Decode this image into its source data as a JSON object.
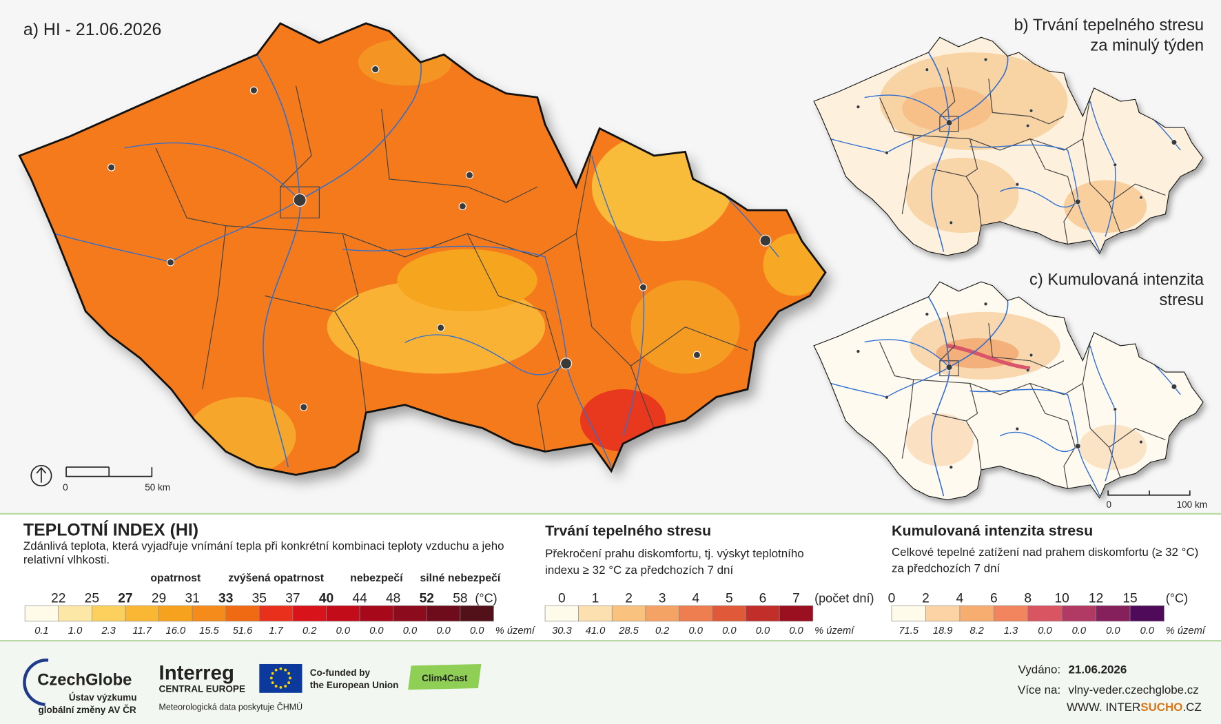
{
  "maps": {
    "a": {
      "title": "a) HI - 21.06.2026",
      "scale_labels": [
        "0",
        "50 km"
      ]
    },
    "b": {
      "title_lines": [
        "b) Trvání tepelného stresu",
        "za minulý týden"
      ]
    },
    "c": {
      "title_lines": [
        "c) Kumulovaná intenzita",
        "stresu"
      ],
      "scale_labels": [
        "0",
        "100 km"
      ]
    }
  },
  "legends": [
    {
      "title": "TEPLOTNÍ INDEX (HI)",
      "description_lines": [
        "Zdánlivá teplota, která vyjadřuje vnímání tepla při konkrétní kombinaci teploty vzduchu a jeho",
        "relativní vlhkosti."
      ],
      "levels": [
        {
          "label": "opatrnost",
          "threshold": 27
        },
        {
          "label": "zvýšená opatrnost",
          "threshold": 33
        },
        {
          "label": "nebezpečí",
          "threshold": 40
        },
        {
          "label": "silné nebezpečí",
          "threshold": 52
        }
      ],
      "ticks": [
        22,
        25,
        27,
        29,
        31,
        33,
        35,
        37,
        40,
        44,
        48,
        52,
        58
      ],
      "unit": "(°C)",
      "colors": [
        "#fffbe8",
        "#fde7a6",
        "#fbd05c",
        "#f9b733",
        "#f7a21e",
        "#f58b1a",
        "#f06a14",
        "#e8301c",
        "#d8141a",
        "#c20c1a",
        "#a8091a",
        "#8c0b1c",
        "#6e0c1c",
        "#521018"
      ],
      "shares": [
        "0.1",
        "1.0",
        "2.3",
        "11.7",
        "16.0",
        "15.5",
        "51.6",
        "1.7",
        "0.2",
        "0.0",
        "0.0",
        "0.0",
        "0.0",
        "0.0"
      ],
      "share_unit": "% území"
    },
    {
      "title": "Trvání tepelného stresu",
      "description_lines": [
        "Překročení prahu diskomfortu, tj. výskyt teplotního",
        "indexu ≥ 32 °C za předchozích 7 dní"
      ],
      "ticks": [
        0,
        1,
        2,
        3,
        4,
        5,
        6,
        7
      ],
      "unit": "(počet dní)",
      "colors": [
        "#fffbea",
        "#fde0b0",
        "#f9c27e",
        "#f5a365",
        "#ee7d50",
        "#e05a3a",
        "#c22f2a",
        "#9a1020"
      ],
      "shares": [
        "30.3",
        "41.0",
        "28.5",
        "0.2",
        "0.0",
        "0.0",
        "0.0",
        "0.0"
      ],
      "share_unit": "% území"
    },
    {
      "title": "Kumulovaná intenzita stresu",
      "description_lines": [
        "Celkové tepelné zatížení nad prahem diskomfortu (≥ 32 °C)",
        "za předchozích 7 dní"
      ],
      "ticks": [
        0,
        2,
        4,
        6,
        8,
        10,
        12,
        15
      ],
      "unit": "(°C)",
      "colors": [
        "#fffbea",
        "#fbd3a4",
        "#f7ad70",
        "#f2845e",
        "#d95562",
        "#b03a64",
        "#85205c",
        "#500a5a"
      ],
      "shares": [
        "71.5",
        "18.9",
        "8.2",
        "1.3",
        "0.0",
        "0.0",
        "0.0",
        "0.0"
      ],
      "share_unit": "% území"
    }
  ],
  "footer": {
    "czechglobe": {
      "name": "CzechGlobe",
      "lines": [
        "Ústav výzkumu",
        "globální změny AV ČR"
      ]
    },
    "interreg": {
      "name": "Interreg",
      "region": "CENTRAL EUROPE"
    },
    "eu": [
      "Co-funded by",
      "the European Union"
    ],
    "project": "Clim4Cast",
    "data_note": "Meteorologická data poskytuje ČHMÚ",
    "issued_label": "Vydáno:",
    "issued_date": "21.06.2026",
    "more_label": "Více na:",
    "url": "vlny-veder.czechglobe.cz",
    "site": [
      "WWW. INTER",
      "SUCHO",
      ".CZ"
    ]
  }
}
